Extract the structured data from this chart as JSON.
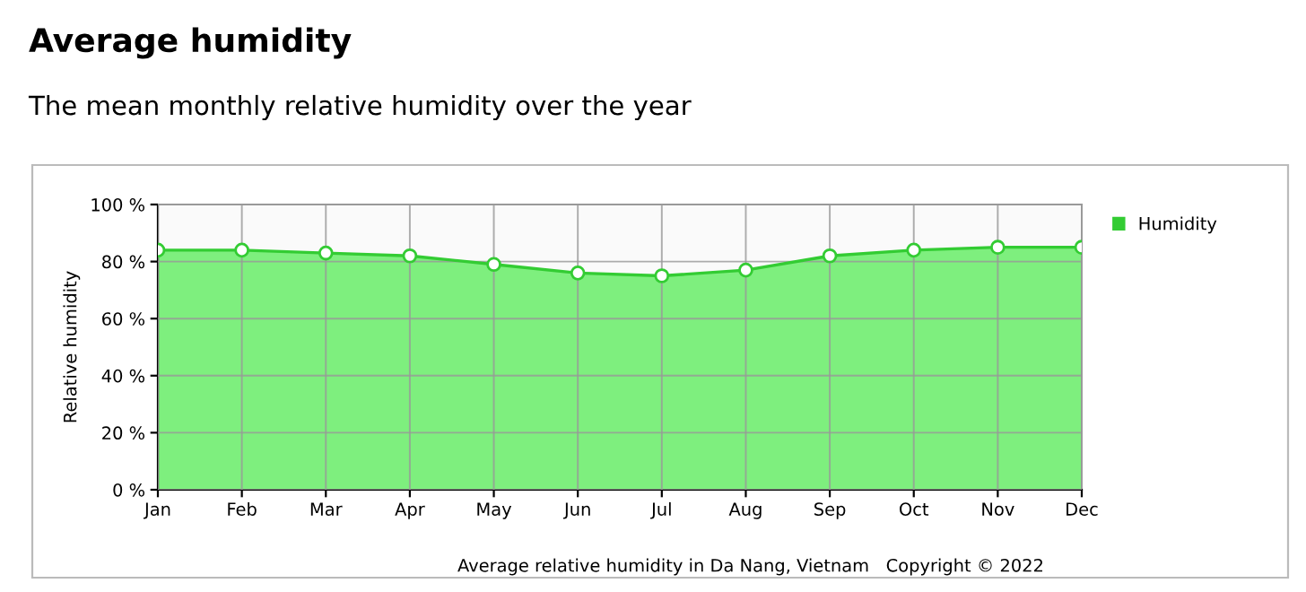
{
  "chart_data": {
    "type": "area",
    "title": "Average humidity",
    "subtitle": "The mean monthly relative humidity over the year",
    "ylabel": "Relative humidity",
    "categories": [
      "Jan",
      "Feb",
      "Mar",
      "Apr",
      "May",
      "Jun",
      "Jul",
      "Aug",
      "Sep",
      "Oct",
      "Nov",
      "Dec"
    ],
    "series": [
      {
        "name": "Humidity",
        "color": "#33cc33",
        "values": [
          84,
          84,
          83,
          82,
          79,
          76,
          75,
          77,
          82,
          84,
          85,
          85
        ]
      }
    ],
    "ylim": [
      0,
      100
    ],
    "yticks": [
      {
        "value": 0,
        "label": "0 %"
      },
      {
        "value": 20,
        "label": "20 %"
      },
      {
        "value": 40,
        "label": "40 %"
      },
      {
        "value": 60,
        "label": "60 %"
      },
      {
        "value": 80,
        "label": "80 %"
      },
      {
        "value": 100,
        "label": "100 %"
      }
    ],
    "grid": true,
    "legend": "top right",
    "marker": "circle",
    "annotations": [
      "Average relative humidity in Da Nang, Vietnam   Copyright © 2022"
    ]
  }
}
